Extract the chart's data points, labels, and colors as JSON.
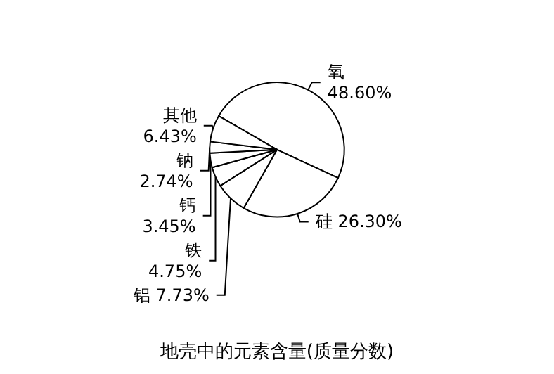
{
  "chart_data": {
    "type": "pie",
    "title": "地壳中的元素含量(质量分数)",
    "categories": [
      "氧",
      "硅",
      "铝",
      "铁",
      "钙",
      "钠",
      "其他"
    ],
    "values": [
      48.6,
      26.3,
      7.73,
      4.75,
      3.45,
      2.74,
      6.43
    ],
    "value_labels": [
      "48.60%",
      "26.30%",
      "7.73%",
      "4.75%",
      "3.45%",
      "2.74%",
      "6.43%"
    ],
    "colors": [
      "#ffffff",
      "#ffffff",
      "#ffffff",
      "#ffffff",
      "#ffffff",
      "#ffffff",
      "#ffffff"
    ],
    "legend": false
  }
}
